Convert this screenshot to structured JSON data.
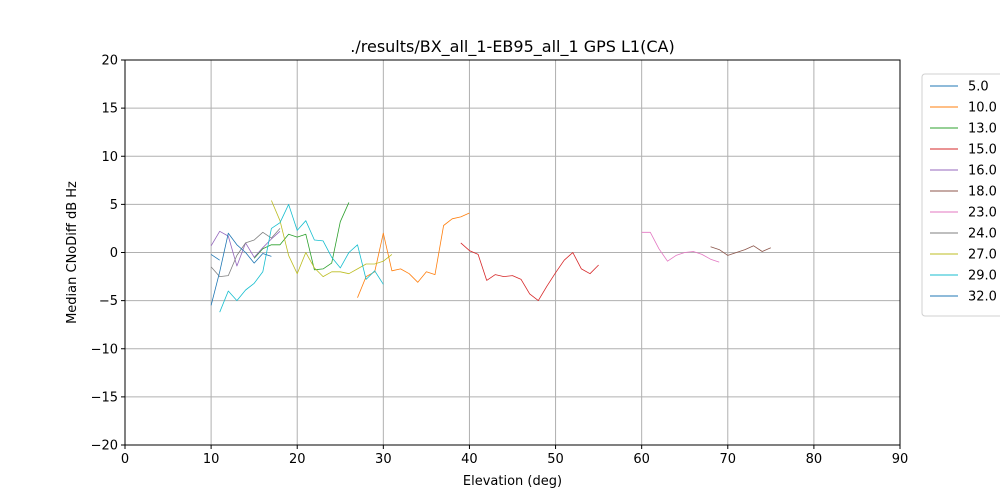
{
  "chart_data": {
    "type": "line",
    "title": "./results/BX_all_1-EB95_all_1 GPS L1(CA)",
    "xlabel": "Elevation (deg)",
    "ylabel": "Median CNoDiff dB Hz",
    "xlim": [
      0,
      90
    ],
    "ylim": [
      -20,
      20
    ],
    "xticks": [
      0,
      10,
      20,
      30,
      40,
      50,
      60,
      70,
      80,
      90
    ],
    "yticks": [
      -20,
      -15,
      -10,
      -5,
      0,
      5,
      10,
      15,
      20
    ],
    "grid": true,
    "legend_position": "outside-right-top",
    "series": [
      {
        "name": "5.0",
        "color": "#1f77b4",
        "points": [
          [
            10,
            -0.2
          ],
          [
            11,
            -0.8
          ]
        ]
      },
      {
        "name": "10.0",
        "color": "#ff7f0e",
        "points": [
          [
            27,
            -4.7
          ],
          [
            28,
            -2.5
          ],
          [
            29,
            -2.0
          ],
          [
            30,
            2.0
          ],
          [
            31,
            -1.9
          ],
          [
            32,
            -1.7
          ],
          [
            33,
            -2.2
          ],
          [
            34,
            -3.1
          ],
          [
            35,
            -2.0
          ],
          [
            36,
            -2.3
          ],
          [
            37,
            2.8
          ],
          [
            38,
            3.5
          ],
          [
            39,
            3.7
          ],
          [
            40,
            4.1
          ]
        ]
      },
      {
        "name": "13.0",
        "color": "#2ca02c",
        "points": [
          [
            15,
            -0.6
          ],
          [
            16,
            0.4
          ],
          [
            17,
            0.8
          ],
          [
            18,
            0.8
          ],
          [
            19,
            1.9
          ],
          [
            20,
            1.6
          ],
          [
            21,
            1.9
          ],
          [
            22,
            -1.8
          ],
          [
            23,
            -1.7
          ],
          [
            24,
            -1.1
          ],
          [
            25,
            3.2
          ],
          [
            26,
            5.2
          ]
        ]
      },
      {
        "name": "15.0",
        "color": "#d62728",
        "points": [
          [
            39,
            1.0
          ],
          [
            40,
            0.2
          ],
          [
            41,
            -0.2
          ],
          [
            42,
            -2.9
          ],
          [
            43,
            -2.3
          ],
          [
            44,
            -2.5
          ],
          [
            45,
            -2.4
          ],
          [
            46,
            -2.8
          ],
          [
            47,
            -4.3
          ],
          [
            48,
            -5.0
          ],
          [
            49,
            -3.5
          ],
          [
            50,
            -2.1
          ],
          [
            51,
            -0.8
          ],
          [
            52,
            0.0
          ],
          [
            53,
            -1.7
          ],
          [
            54,
            -2.2
          ],
          [
            55,
            -1.3
          ]
        ]
      },
      {
        "name": "16.0",
        "color": "#9467bd",
        "points": [
          [
            10,
            0.7
          ],
          [
            11,
            2.2
          ],
          [
            12,
            1.7
          ],
          [
            13,
            -1.4
          ],
          [
            14,
            1.0
          ],
          [
            15,
            -0.5
          ],
          [
            16,
            0.5
          ],
          [
            17,
            1.4
          ],
          [
            18,
            2.2
          ]
        ]
      },
      {
        "name": "18.0",
        "color": "#8c564b",
        "points": [
          [
            68,
            0.6
          ],
          [
            69,
            0.3
          ],
          [
            70,
            -0.3
          ],
          [
            71,
            0.0
          ],
          [
            72,
            0.3
          ],
          [
            73,
            0.7
          ],
          [
            74,
            0.1
          ],
          [
            75,
            0.5
          ]
        ]
      },
      {
        "name": "23.0",
        "color": "#e377c2",
        "points": [
          [
            60,
            2.1
          ],
          [
            61,
            2.1
          ],
          [
            62,
            0.4
          ],
          [
            63,
            -0.9
          ],
          [
            64,
            -0.3
          ],
          [
            65,
            0.0
          ],
          [
            66,
            0.1
          ],
          [
            67,
            -0.2
          ],
          [
            68,
            -0.7
          ],
          [
            69,
            -1.0
          ]
        ]
      },
      {
        "name": "24.0",
        "color": "#7f7f7f",
        "points": [
          [
            10,
            -1.5
          ],
          [
            11,
            -2.5
          ],
          [
            12,
            -2.4
          ],
          [
            13,
            -0.3
          ],
          [
            14,
            1.0
          ],
          [
            15,
            1.3
          ],
          [
            16,
            2.1
          ],
          [
            17,
            1.5
          ],
          [
            18,
            2.5
          ]
        ]
      },
      {
        "name": "27.0",
        "color": "#bcbd22",
        "points": [
          [
            17,
            5.4
          ],
          [
            18,
            3.3
          ],
          [
            19,
            -0.3
          ],
          [
            20,
            -2.2
          ],
          [
            21,
            0.0
          ],
          [
            22,
            -1.6
          ],
          [
            23,
            -2.5
          ],
          [
            24,
            -2.0
          ],
          [
            25,
            -2.0
          ],
          [
            26,
            -2.2
          ],
          [
            27,
            -1.7
          ],
          [
            28,
            -1.2
          ],
          [
            29,
            -1.2
          ],
          [
            30,
            -0.9
          ],
          [
            31,
            -0.2
          ]
        ]
      },
      {
        "name": "29.0",
        "color": "#17becf",
        "points": [
          [
            11,
            -6.2
          ],
          [
            12,
            -4.0
          ],
          [
            13,
            -5.0
          ],
          [
            14,
            -3.9
          ],
          [
            15,
            -3.2
          ],
          [
            16,
            -2.0
          ],
          [
            17,
            2.5
          ],
          [
            18,
            3.1
          ],
          [
            19,
            5.0
          ],
          [
            20,
            2.3
          ],
          [
            21,
            3.3
          ],
          [
            22,
            1.3
          ],
          [
            23,
            1.2
          ],
          [
            24,
            -0.5
          ],
          [
            25,
            -1.6
          ],
          [
            26,
            0.0
          ],
          [
            27,
            0.8
          ],
          [
            28,
            -2.8
          ],
          [
            29,
            -1.9
          ],
          [
            30,
            -3.3
          ]
        ]
      },
      {
        "name": "32.0",
        "color": "#1f77b4",
        "points": [
          [
            10,
            -5.5
          ],
          [
            11,
            -2.0
          ],
          [
            12,
            2.0
          ],
          [
            13,
            0.8
          ],
          [
            14,
            0.0
          ],
          [
            15,
            -1.1
          ],
          [
            16,
            -0.1
          ],
          [
            17,
            -0.4
          ]
        ]
      }
    ]
  }
}
